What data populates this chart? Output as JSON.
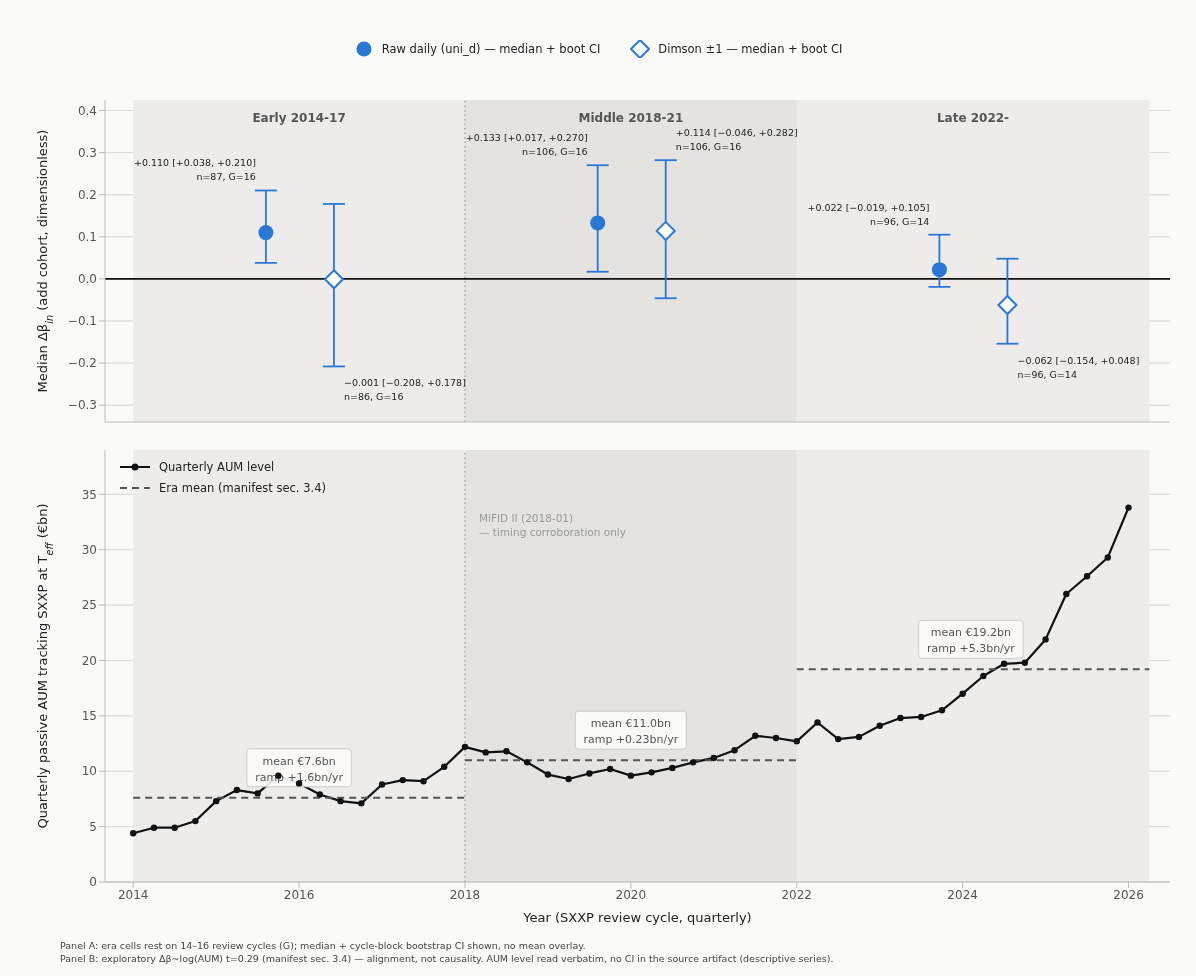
{
  "chart_data": [
    {
      "type": "scatter",
      "ylabel": "Median Δβ$_{in}$ (add cohort, dimensionless)",
      "xlim": [
        2013.66,
        2026.5
      ],
      "ylim": [
        -0.34,
        0.425
      ],
      "yticks": [
        {
          "value": -0.3,
          "label": "−0.3"
        },
        {
          "value": -0.2,
          "label": "−0.2"
        },
        {
          "value": -0.1,
          "label": "−0.1"
        },
        {
          "value": 0,
          "label": "0.0"
        },
        0.1,
        0.2,
        0.3,
        0.4
      ],
      "tick_labels": "y",
      "grid": "y",
      "legend": "top",
      "series": [
        {
          "name": "Raw daily (uni_d) — median + boot CI",
          "color": "#2a78d6",
          "marker": "circle",
          "x": [
            2015.6,
            2019.6,
            2023.72
          ],
          "values": [
            0.11,
            0.133,
            0.022
          ],
          "errors": [
            [
              0.038,
              0.21
            ],
            [
              0.017,
              0.27
            ],
            [
              -0.019,
              0.105
            ]
          ]
        },
        {
          "name": "Dimson ±1 — median + boot CI",
          "color": "#2a78d6",
          "marker": "diamond",
          "x": [
            2016.42,
            2020.42,
            2024.54
          ],
          "values": [
            -0.001,
            0.114,
            -0.062
          ],
          "errors": [
            [
              -0.208,
              0.178
            ],
            [
              -0.046,
              0.282
            ],
            [
              -0.154,
              0.048
            ]
          ]
        }
      ],
      "bands": [
        {
          "axis": "x",
          "from": 2014,
          "to": 2018,
          "label": "Early 2014-17",
          "color": "#edecea"
        },
        {
          "axis": "x",
          "from": 2018,
          "to": 2022,
          "label": "Middle 2018-21",
          "color": "#e4e3e0"
        },
        {
          "axis": "x",
          "from": 2022,
          "to": 2026.25,
          "label": "Late 2022-",
          "color": "#edecea"
        }
      ],
      "ref_lines": [
        {
          "axis": "x",
          "value": 2018,
          "color": "#999999",
          "line_style": "dotted"
        },
        {
          "axis": "y",
          "value": 0,
          "color": "#111111",
          "line_style": "solid"
        }
      ],
      "annotations": [
        {
          "text": "+0.110 [+0.038, +0.210]\nn=87, G=16",
          "x": 2015.6,
          "y": 0.21
        },
        {
          "text": "−0.001 [−0.208, +0.178]\nn=86, G=16",
          "x": 2016.42,
          "y": -0.208
        },
        {
          "text": "+0.133 [+0.017, +0.270]\nn=106, G=16",
          "x": 2019.6,
          "y": 0.27
        },
        {
          "text": "+0.114 [−0.046, +0.282]\nn=106, G=16",
          "x": 2020.42,
          "y": 0.282
        },
        {
          "text": "+0.022 [−0.019, +0.105]\nn=96, G=14",
          "x": 2023.72,
          "y": 0.105
        },
        {
          "text": "−0.062 [−0.154, +0.048]\nn=96, G=14",
          "x": 2024.54,
          "y": -0.154
        }
      ]
    },
    {
      "type": "line",
      "xlabel": "Year (SXXP review cycle, quarterly)",
      "ylabel": "Quarterly passive AUM tracking SXXP at T$_{eff}$ (€bn)",
      "xlim": [
        2013.66,
        2026.5
      ],
      "xticks": [
        2014,
        2016,
        2018,
        2020,
        2022,
        2024,
        2026
      ],
      "ylim": [
        0,
        39
      ],
      "yticks": [
        0,
        5,
        10,
        15,
        20,
        25,
        30,
        35
      ],
      "grid": "y",
      "legend": "top left",
      "series": [
        {
          "name": "Quarterly AUM level",
          "color": "#111111",
          "marker": "circle",
          "line_style": "solid",
          "x": [
            2014,
            2014.25,
            2014.5,
            2014.75,
            2015,
            2015.25,
            2015.5,
            2015.75,
            2016,
            2016.25,
            2016.5,
            2016.75,
            2017,
            2017.25,
            2017.5,
            2017.75,
            2018,
            2018.25,
            2018.5,
            2018.75,
            2019,
            2019.25,
            2019.5,
            2019.75,
            2020,
            2020.25,
            2020.5,
            2020.75,
            2021,
            2021.25,
            2021.5,
            2021.75,
            2022,
            2022.25,
            2022.5,
            2022.75,
            2023,
            2023.25,
            2023.5,
            2023.75,
            2024,
            2024.25,
            2024.5,
            2024.75,
            2025,
            2025.25,
            2025.5,
            2025.75,
            2026
          ],
          "values": [
            4.4,
            4.9,
            4.9,
            5.5,
            7.3,
            8.3,
            8.0,
            9.6,
            8.9,
            7.9,
            7.3,
            7.1,
            8.8,
            9.2,
            9.1,
            10.4,
            12.2,
            11.7,
            11.8,
            10.8,
            9.7,
            9.3,
            9.8,
            10.2,
            9.6,
            9.9,
            10.3,
            10.8,
            11.2,
            11.9,
            13.2,
            13.0,
            12.7,
            14.4,
            12.9,
            13.1,
            14.1,
            14.8,
            14.9,
            15.5,
            17.0,
            18.6,
            19.7,
            19.8,
            21.9,
            26.0,
            27.6,
            29.3,
            33.8
          ]
        },
        {
          "name": "Era mean (manifest sec. 3.4)",
          "color": "#555555",
          "marker": "none",
          "line_style": "dashed",
          "x": [
            2014,
            2018
          ],
          "values": [
            7.6,
            7.6
          ]
        },
        {
          "color": "#555555",
          "marker": "none",
          "line_style": "dashed",
          "x": [
            2018,
            2022
          ],
          "values": [
            11.0,
            11.0
          ]
        },
        {
          "color": "#555555",
          "marker": "none",
          "line_style": "dashed",
          "x": [
            2022,
            2026.25
          ],
          "values": [
            19.2,
            19.2
          ]
        }
      ],
      "bands": [
        {
          "axis": "x",
          "from": 2014,
          "to": 2018,
          "color": "#edecea"
        },
        {
          "axis": "x",
          "from": 2018,
          "to": 2022,
          "color": "#e4e3e0"
        },
        {
          "axis": "x",
          "from": 2022,
          "to": 2026.25,
          "color": "#edecea"
        }
      ],
      "ref_lines": [
        {
          "axis": "x",
          "value": 2018,
          "color": "#999999",
          "line_style": "dotted",
          "label": "MiFID II (2018-01)\n— timing corroboration only"
        }
      ],
      "annotations": [
        {
          "text": "mean €7.6bn\nramp +1.6bn/yr",
          "x": 2016,
          "y": 7.6
        },
        {
          "text": "mean €11.0bn\nramp +0.23bn/yr",
          "x": 2020,
          "y": 11.0
        },
        {
          "text": "mean €19.2bn\nramp +5.3bn/yr",
          "x": 2024.1,
          "y": 19.2
        },
        "Panel A: era cells rest on 14–16 review cycles (G); median + cycle-block bootstrap CI shown, no mean overlay.",
        "Panel B: exploratory Δβ~log(AUM) t=0.29 (manifest sec. 3.4) — alignment, not causality. AUM level read verbatim, no CI in the source artifact (descriptive series)."
      ]
    }
  ]
}
